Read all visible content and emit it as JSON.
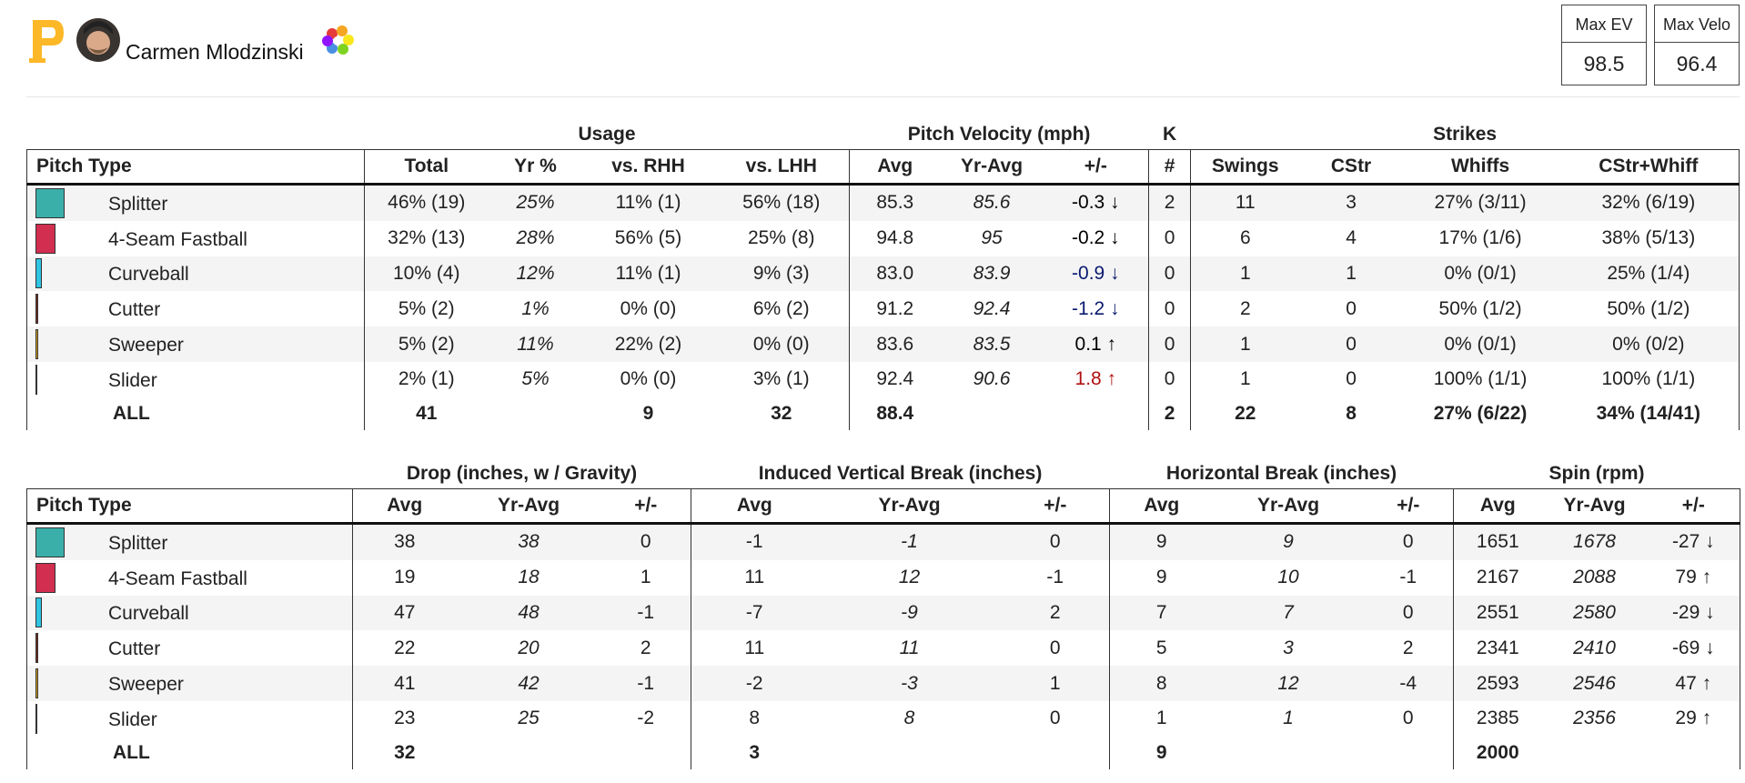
{
  "header": {
    "player_name": "Carmen Mlodzinski",
    "stats": [
      {
        "label": "Max EV",
        "value": "98.5"
      },
      {
        "label": "Max Velo",
        "value": "96.4"
      }
    ]
  },
  "tables": [
    {
      "groups": [
        "Usage",
        "Pitch Velocity (mph)",
        "K",
        "Strikes"
      ],
      "columns": [
        "Pitch Type",
        "Total",
        "Yr %",
        "vs. RHH",
        "vs. LHH",
        "Avg",
        "Yr-Avg",
        "+/-",
        "#",
        "Swings",
        "CStr",
        "Whiffs",
        "CStr+Whiff"
      ],
      "rows": [
        {
          "pitch": "Splitter",
          "color": "#3aafa9",
          "diff_color": "#000000",
          "values": [
            "46% (19)",
            "25%",
            "11% (1)",
            "56% (18)",
            "85.3",
            "85.6",
            "-0.3 ↓",
            "2",
            "11",
            "3",
            "27% (3/11)",
            "32% (6/19)"
          ]
        },
        {
          "pitch": "4-Seam Fastball",
          "color": "#d22e4f",
          "diff_color": "#000000",
          "values": [
            "32% (13)",
            "28%",
            "56% (5)",
            "25% (8)",
            "94.8",
            "95",
            "-0.2 ↓",
            "0",
            "6",
            "4",
            "17% (1/6)",
            "38% (5/13)"
          ]
        },
        {
          "pitch": "Curveball",
          "color": "#2ec4e3",
          "diff_color": "#0a1a6e",
          "values": [
            "10% (4)",
            "12%",
            "11% (1)",
            "9% (3)",
            "83.0",
            "83.9",
            "-0.9 ↓",
            "0",
            "1",
            "1",
            "0% (0/1)",
            "25% (1/4)"
          ]
        },
        {
          "pitch": "Cutter",
          "color": "#7a2a1c",
          "diff_color": "#0a1a6e",
          "values": [
            "5% (2)",
            "1%",
            "0% (0)",
            "6% (2)",
            "91.2",
            "92.4",
            "-1.2 ↓",
            "0",
            "2",
            "0",
            "50% (1/2)",
            "50% (1/2)"
          ]
        },
        {
          "pitch": "Sweeper",
          "color": "#d9a81e",
          "diff_color": "#000000",
          "values": [
            "5% (2)",
            "11%",
            "22% (2)",
            "0% (0)",
            "83.6",
            "83.5",
            "0.1 ↑",
            "0",
            "1",
            "0",
            "0% (0/1)",
            "0% (0/2)"
          ]
        },
        {
          "pitch": "Slider",
          "color": "#222222",
          "diff_color": "#b01010",
          "values": [
            "2% (1)",
            "5%",
            "0% (0)",
            "3% (1)",
            "92.4",
            "90.6",
            "1.8 ↑",
            "0",
            "1",
            "0",
            "100% (1/1)",
            "100% (1/1)"
          ]
        }
      ],
      "total": {
        "label": "ALL",
        "values": [
          "41",
          null,
          "9",
          "32",
          "88.4",
          null,
          null,
          "2",
          "22",
          "8",
          "27% (6/22)",
          "34% (14/41)"
        ]
      }
    },
    {
      "groups": [
        "Drop (inches, w / Gravity)",
        "Induced Vertical Break (inches)",
        "Horizontal Break (inches)",
        "Spin (rpm)"
      ],
      "columns": [
        "Pitch Type",
        "Avg",
        "Yr-Avg",
        "+/-",
        "Avg",
        "Yr-Avg",
        "+/-",
        "Avg",
        "Yr-Avg",
        "+/-",
        "Avg",
        "Yr-Avg",
        "+/-"
      ],
      "rows": [
        {
          "pitch": "Splitter",
          "color": "#3aafa9",
          "values": [
            "38",
            "38",
            "0",
            "-1",
            "-1",
            "0",
            "9",
            "9",
            "0",
            "1651",
            "1678",
            "-27 ↓"
          ]
        },
        {
          "pitch": "4-Seam Fastball",
          "color": "#d22e4f",
          "values": [
            "19",
            "18",
            "1",
            "11",
            "12",
            "-1",
            "9",
            "10",
            "-1",
            "2167",
            "2088",
            "79 ↑"
          ]
        },
        {
          "pitch": "Curveball",
          "color": "#2ec4e3",
          "values": [
            "47",
            "48",
            "-1",
            "-7",
            "-9",
            "2",
            "7",
            "7",
            "0",
            "2551",
            "2580",
            "-29 ↓"
          ]
        },
        {
          "pitch": "Cutter",
          "color": "#7a2a1c",
          "values": [
            "22",
            "20",
            "2",
            "11",
            "11",
            "0",
            "5",
            "3",
            "2",
            "2341",
            "2410",
            "-69 ↓"
          ]
        },
        {
          "pitch": "Sweeper",
          "color": "#d9a81e",
          "values": [
            "41",
            "42",
            "-1",
            "-2",
            "-3",
            "1",
            "8",
            "12",
            "-4",
            "2593",
            "2546",
            "47 ↑"
          ]
        },
        {
          "pitch": "Slider",
          "color": "#222222",
          "values": [
            "23",
            "25",
            "-2",
            "8",
            "8",
            "0",
            "1",
            "1",
            "0",
            "2385",
            "2356",
            "29 ↑"
          ]
        }
      ],
      "total": {
        "label": "ALL",
        "values": [
          "32",
          null,
          null,
          "3",
          null,
          null,
          "9",
          null,
          null,
          "2000",
          null,
          null
        ]
      }
    }
  ]
}
